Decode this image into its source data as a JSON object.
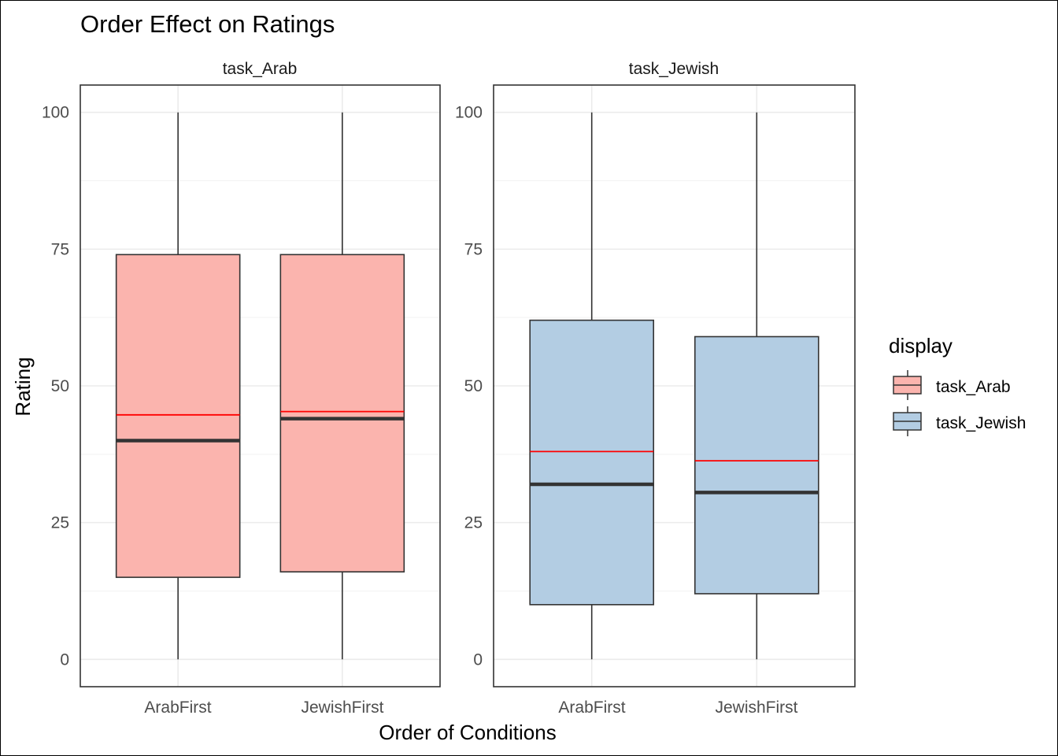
{
  "chart_data": {
    "type": "box",
    "title": "Order Effect on Ratings",
    "xlabel": "Order of Conditions",
    "ylabel": "Rating",
    "ylim": [
      -5,
      105
    ],
    "yticks": [
      0,
      25,
      50,
      75,
      100
    ],
    "categories": [
      "ArabFirst",
      "JewishFirst"
    ],
    "grid": true,
    "legend": {
      "title": "display",
      "position": "right",
      "entries": [
        {
          "label": "task_Arab",
          "fill": "#FBB4AE"
        },
        {
          "label": "task_Jewish",
          "fill": "#B3CDE3"
        }
      ]
    },
    "mean_line_color": "#FF0000",
    "panels": [
      {
        "strip": "task_Arab",
        "fill": "#FBB4AE",
        "boxes": [
          {
            "category": "ArabFirst",
            "min": 0,
            "q1": 15,
            "median": 40,
            "q3": 74,
            "max": 100,
            "mean": 44.7
          },
          {
            "category": "JewishFirst",
            "min": 0,
            "q1": 16,
            "median": 44,
            "q3": 74,
            "max": 100,
            "mean": 45.3
          }
        ]
      },
      {
        "strip": "task_Jewish",
        "fill": "#B3CDE3",
        "boxes": [
          {
            "category": "ArabFirst",
            "min": 0,
            "q1": 10,
            "median": 32,
            "q3": 62,
            "max": 100,
            "mean": 38
          },
          {
            "category": "JewishFirst",
            "min": 0,
            "q1": 12,
            "median": 30.5,
            "q3": 59,
            "max": 100,
            "mean": 36.3
          }
        ]
      }
    ]
  }
}
